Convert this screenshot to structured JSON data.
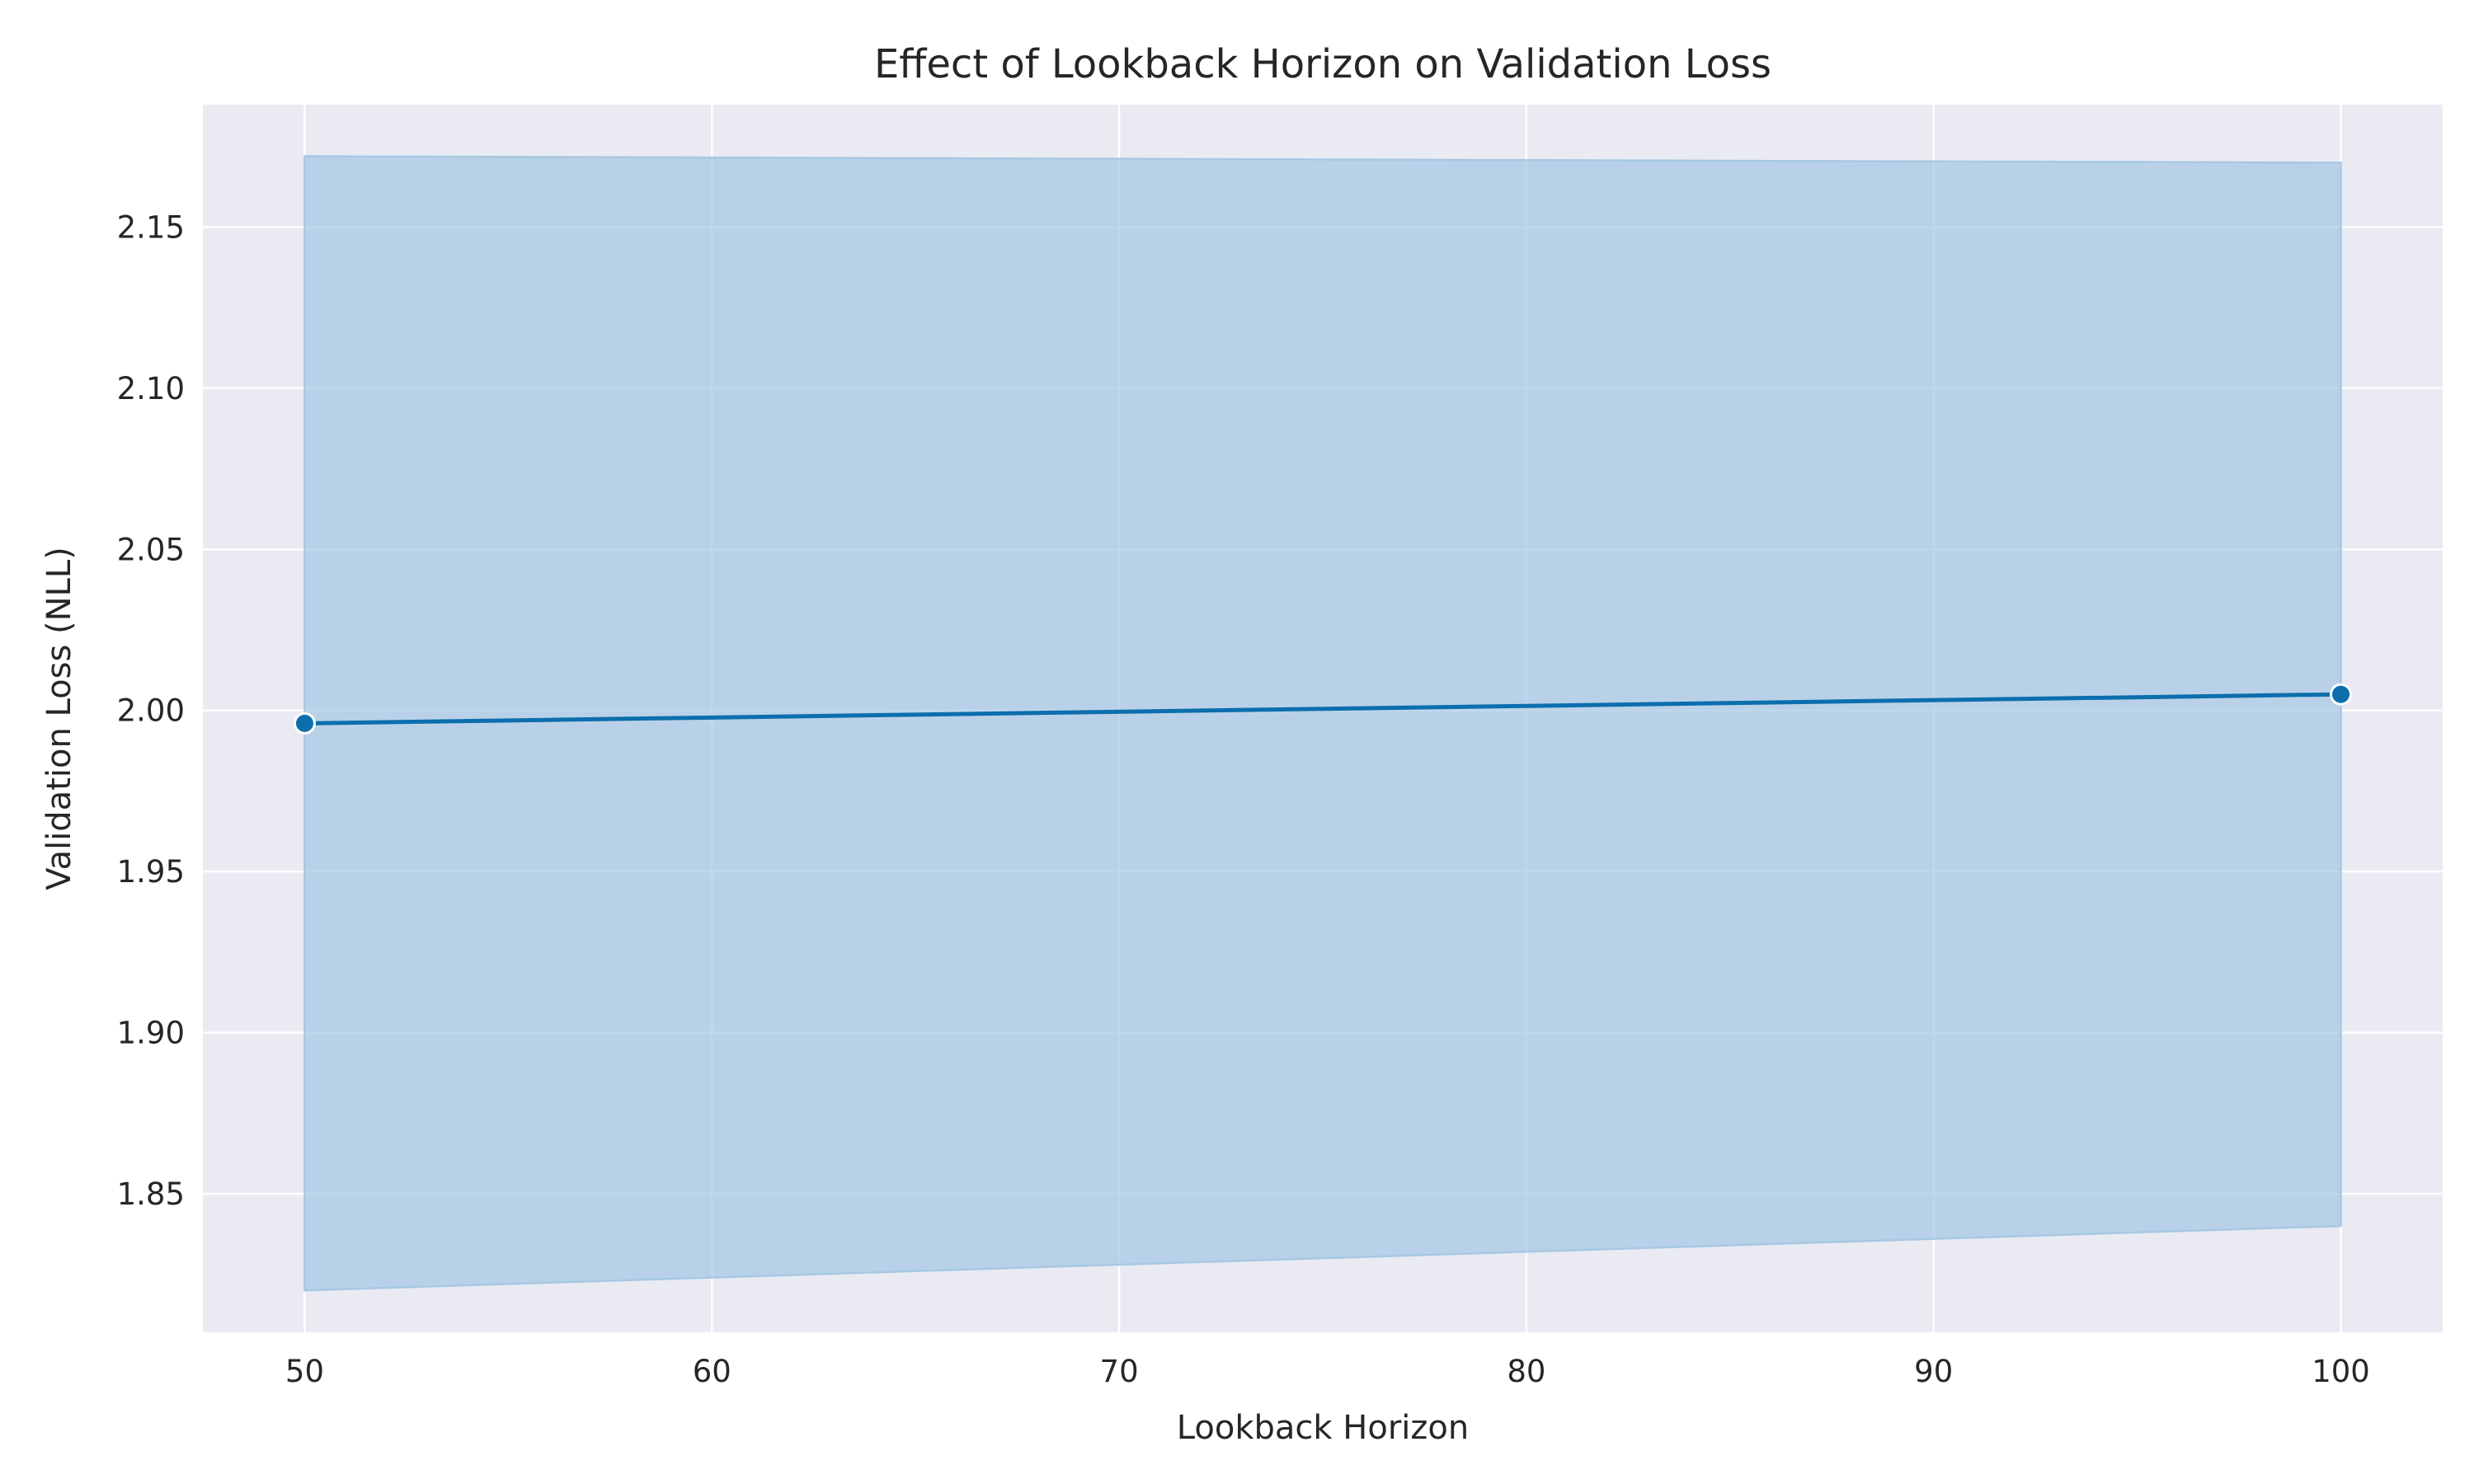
{
  "chart_data": {
    "type": "line",
    "title": "Effect of Lookback Horizon on Validation Loss",
    "xlabel": "Lookback Horizon",
    "ylabel": "Validation Loss (NLL)",
    "xlim": [
      47.5,
      102.5
    ],
    "ylim": [
      1.807,
      2.188
    ],
    "xticks": [
      50,
      60,
      70,
      80,
      90,
      100
    ],
    "yticks": [
      1.85,
      1.9,
      1.95,
      2.0,
      2.05,
      2.1,
      2.15
    ],
    "xtick_labels": [
      "50",
      "60",
      "70",
      "80",
      "90",
      "100"
    ],
    "ytick_labels": [
      "1.85",
      "1.90",
      "1.95",
      "2.00",
      "2.05",
      "2.10",
      "2.15"
    ],
    "grid": true,
    "series": [
      {
        "x": [
          50,
          100
        ],
        "y": [
          1.996,
          2.005
        ],
        "ci_lower": [
          1.82,
          1.84
        ],
        "ci_upper": [
          2.172,
          2.17
        ],
        "color": "#0c6ead",
        "band_color": "#a6c8e3",
        "marker": "circle"
      }
    ],
    "colors": {
      "plot_background": "#eaeaf2",
      "grid": "#ffffff"
    }
  }
}
